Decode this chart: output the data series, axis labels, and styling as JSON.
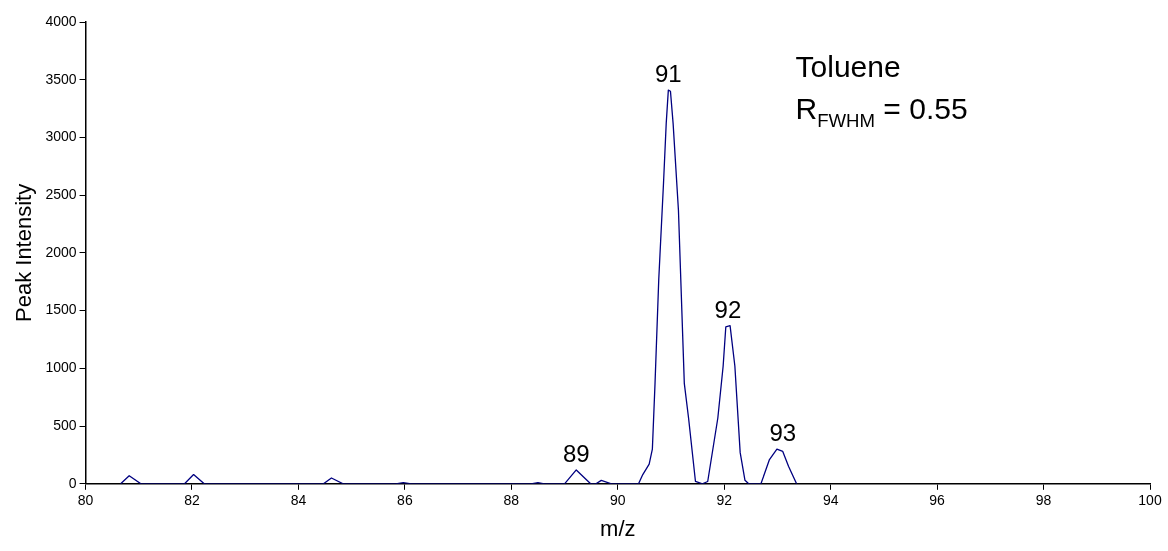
{
  "chart_data": {
    "type": "line",
    "xlabel": "m/z",
    "ylabel": "Peak Intensity",
    "x": [
      80.66,
      80.82,
      81.04,
      81.86,
      82.03,
      82.23,
      84.47,
      84.62,
      84.84,
      85.83,
      85.97,
      86.12,
      88.37,
      88.5,
      88.62,
      89.0,
      89.22,
      89.49,
      89.59,
      89.69,
      89.88,
      90.39,
      90.47,
      90.59,
      90.65,
      90.7,
      90.77,
      90.86,
      90.91,
      90.95,
      90.99,
      91.04,
      91.14,
      91.25,
      91.33,
      91.46,
      91.59,
      91.69,
      91.88,
      91.98,
      92.03,
      92.11,
      92.2,
      92.3,
      92.39,
      92.46,
      92.69,
      92.85,
      92.99,
      93.1,
      93.21,
      93.36
    ],
    "series": [
      {
        "color": "#000080",
        "values": [
          0,
          70,
          0,
          0,
          80,
          0,
          0,
          50,
          0,
          0,
          10,
          0,
          0,
          10,
          0,
          0,
          120,
          0,
          0,
          30,
          0,
          0,
          80,
          170,
          300,
          870,
          1770,
          2610,
          3120,
          3410,
          3400,
          3120,
          2370,
          870,
          570,
          20,
          0,
          20,
          570,
          1020,
          1360,
          1370,
          1020,
          270,
          30,
          0,
          0,
          210,
          300,
          280,
          150,
          0
        ]
      }
    ],
    "xlim": [
      80,
      100
    ],
    "xticks": [
      80,
      82,
      84,
      86,
      88,
      90,
      92,
      94,
      96,
      98,
      100
    ],
    "ylim": [
      0,
      4000
    ],
    "yticks": [
      0,
      500,
      1000,
      1500,
      2000,
      2500,
      3000,
      3500,
      4000
    ],
    "grid": false,
    "legend": false,
    "marker": "none",
    "line_style": "solid",
    "annotations": [
      {
        "text": "91",
        "x": 90.95,
        "y": 3410
      },
      {
        "text": "92",
        "x": 92.07,
        "y": 1370
      },
      {
        "text": "89",
        "x": 89.22,
        "y": 120
      },
      {
        "text": "93",
        "x": 93.1,
        "y": 300
      },
      "Toluene",
      "R$_{FWHM}$ = 0.55"
    ]
  }
}
